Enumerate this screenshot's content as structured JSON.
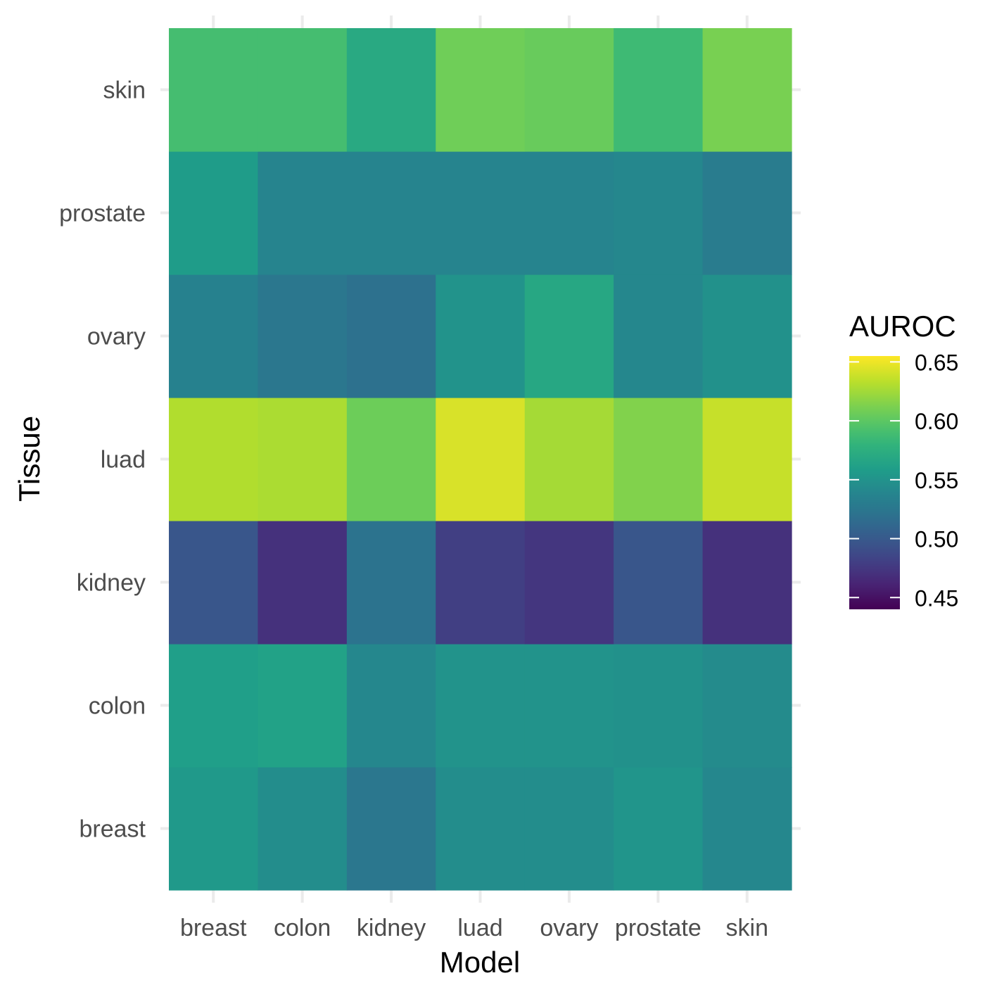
{
  "chart_data": {
    "type": "heatmap",
    "title": "",
    "xlabel": "Model",
    "ylabel": "Tissue",
    "x_categories": [
      "breast",
      "colon",
      "kidney",
      "luad",
      "ovary",
      "prostate",
      "skin"
    ],
    "y_categories": [
      "breast",
      "colon",
      "kidney",
      "luad",
      "ovary",
      "prostate",
      "skin"
    ],
    "values": [
      [
        0.555,
        0.545,
        0.525,
        0.545,
        0.545,
        0.552,
        0.54
      ],
      [
        0.56,
        0.563,
        0.54,
        0.55,
        0.55,
        0.548,
        0.543
      ],
      [
        0.497,
        0.47,
        0.522,
        0.48,
        0.474,
        0.497,
        0.47
      ],
      [
        0.63,
        0.628,
        0.607,
        0.643,
        0.626,
        0.614,
        0.637
      ],
      [
        0.535,
        0.525,
        0.52,
        0.55,
        0.568,
        0.54,
        0.548
      ],
      [
        0.558,
        0.537,
        0.537,
        0.537,
        0.537,
        0.54,
        0.53
      ],
      [
        0.59,
        0.59,
        0.57,
        0.608,
        0.605,
        0.587,
        0.611
      ]
    ],
    "colorbar": {
      "title": "AUROC",
      "min": 0.44,
      "max": 0.655,
      "ticks": [
        0.45,
        0.5,
        0.55,
        0.6,
        0.65
      ],
      "tick_labels": [
        "0.45",
        "0.50",
        "0.55",
        "0.60",
        "0.65"
      ],
      "colormap": "viridis"
    },
    "grid": true,
    "legend_position": "right"
  }
}
